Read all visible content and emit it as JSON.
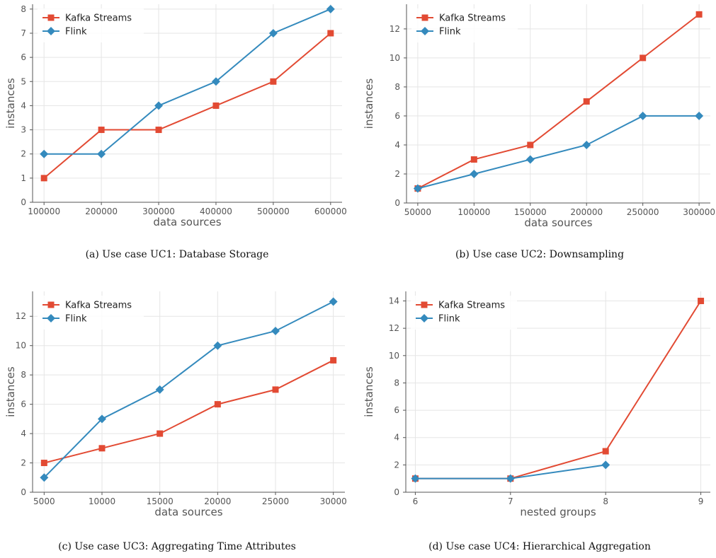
{
  "chart_data": [
    {
      "type": "line",
      "caption": "(a) Use case UC1: Database Storage",
      "xlabel": "data sources",
      "ylabel": "instances",
      "x": [
        100000,
        200000,
        300000,
        400000,
        500000,
        600000
      ],
      "xticks": [
        100000,
        200000,
        300000,
        400000,
        500000,
        600000
      ],
      "yticks": [
        0,
        1,
        2,
        3,
        4,
        5,
        6,
        7,
        8
      ],
      "xlim": [
        80000,
        620000
      ],
      "ylim": [
        0,
        8.2
      ],
      "grid": true,
      "legend_position": "top-left",
      "series": [
        {
          "name": "Kafka Streams",
          "color": "#e24a33",
          "marker": "square",
          "values": [
            1,
            3,
            3,
            4,
            5,
            7
          ]
        },
        {
          "name": "Flink",
          "color": "#348abd",
          "marker": "diamond",
          "values": [
            2,
            2,
            4,
            5,
            7,
            8
          ]
        }
      ]
    },
    {
      "type": "line",
      "caption": "(b) Use case UC2: Downsampling",
      "xlabel": "data sources",
      "ylabel": "instances",
      "x": [
        50000,
        100000,
        150000,
        200000,
        250000,
        300000
      ],
      "xticks": [
        50000,
        100000,
        150000,
        200000,
        250000,
        300000
      ],
      "yticks": [
        0,
        2,
        4,
        6,
        8,
        10,
        12
      ],
      "xlim": [
        40000,
        310000
      ],
      "ylim": [
        0,
        13.7
      ],
      "grid": true,
      "legend_position": "top-left",
      "series": [
        {
          "name": "Kafka Streams",
          "color": "#e24a33",
          "marker": "square",
          "values": [
            1,
            3,
            4,
            7,
            10,
            13
          ]
        },
        {
          "name": "Flink",
          "color": "#348abd",
          "marker": "diamond",
          "values": [
            1,
            2,
            3,
            4,
            6,
            6
          ]
        }
      ]
    },
    {
      "type": "line",
      "caption": "(c) Use case UC3: Aggregating Time Attributes",
      "xlabel": "data sources",
      "ylabel": "instances",
      "x": [
        5000,
        10000,
        15000,
        20000,
        25000,
        30000
      ],
      "xticks": [
        5000,
        10000,
        15000,
        20000,
        25000,
        30000
      ],
      "yticks": [
        0,
        2,
        4,
        6,
        8,
        10,
        12
      ],
      "xlim": [
        4000,
        31000
      ],
      "ylim": [
        0,
        13.7
      ],
      "grid": true,
      "legend_position": "top-left",
      "series": [
        {
          "name": "Kafka Streams",
          "color": "#e24a33",
          "marker": "square",
          "values": [
            2,
            3,
            4,
            6,
            7,
            9
          ]
        },
        {
          "name": "Flink",
          "color": "#348abd",
          "marker": "diamond",
          "values": [
            1,
            5,
            7,
            10,
            11,
            13
          ]
        }
      ]
    },
    {
      "type": "line",
      "caption": "(d) Use case UC4: Hierarchical Aggregation",
      "xlabel": "nested groups",
      "ylabel": "instances",
      "x": [
        6,
        7,
        8,
        9
      ],
      "xticks": [
        6,
        7,
        8,
        9
      ],
      "yticks": [
        0,
        2,
        4,
        6,
        8,
        10,
        12,
        14
      ],
      "xlim": [
        5.9,
        9.1
      ],
      "ylim": [
        0,
        14.7
      ],
      "grid": true,
      "legend_position": "top-left",
      "series": [
        {
          "name": "Kafka Streams",
          "color": "#e24a33",
          "marker": "square",
          "values": [
            1,
            1,
            3,
            14
          ]
        },
        {
          "name": "Flink",
          "color": "#348abd",
          "marker": "diamond",
          "values": [
            1,
            1,
            2,
            null
          ]
        }
      ]
    }
  ]
}
